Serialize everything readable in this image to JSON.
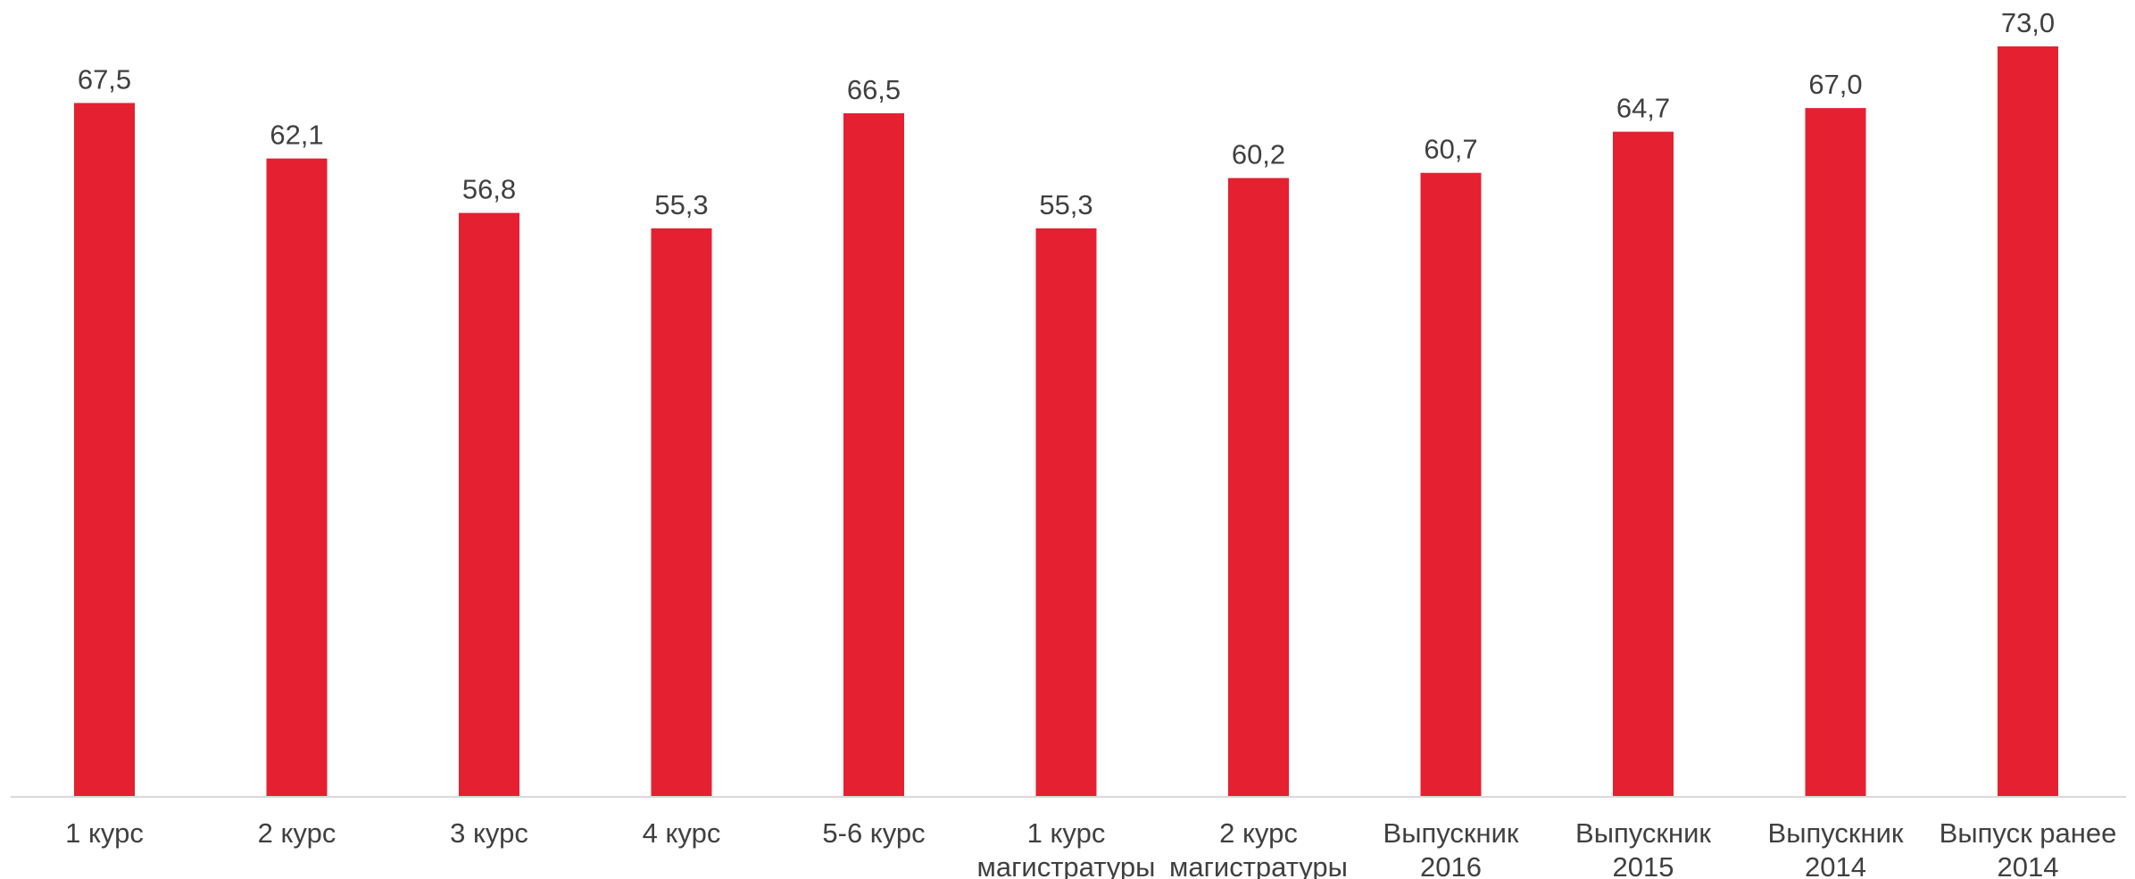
{
  "chart_data": {
    "type": "bar",
    "categories": [
      [
        "1 курс"
      ],
      [
        "2 курс"
      ],
      [
        "3 курс"
      ],
      [
        "4 курс"
      ],
      [
        "5-6 курс"
      ],
      [
        "1 курс",
        "магистратуры"
      ],
      [
        "2 курс",
        "магистратуры"
      ],
      [
        "Выпускник",
        "2016"
      ],
      [
        "Выпускник",
        "2015"
      ],
      [
        "Выпускник",
        "2014"
      ],
      [
        "Выпуск ранее",
        "2014"
      ]
    ],
    "values": [
      67.5,
      62.1,
      56.8,
      55.3,
      66.5,
      55.3,
      60.2,
      60.7,
      64.7,
      67.0,
      73.0
    ],
    "value_labels": [
      "67,5",
      "62,1",
      "56,8",
      "55,3",
      "66,5",
      "55,3",
      "60,2",
      "60,7",
      "64,7",
      "67,0",
      "73,0"
    ],
    "title": "",
    "xlabel": "",
    "ylabel": "",
    "ylim": [
      0,
      73
    ],
    "grid": false,
    "legend": "none",
    "colors": {
      "bar": "#e52030",
      "axis": "#d9d9d9",
      "text": "#404040"
    }
  }
}
